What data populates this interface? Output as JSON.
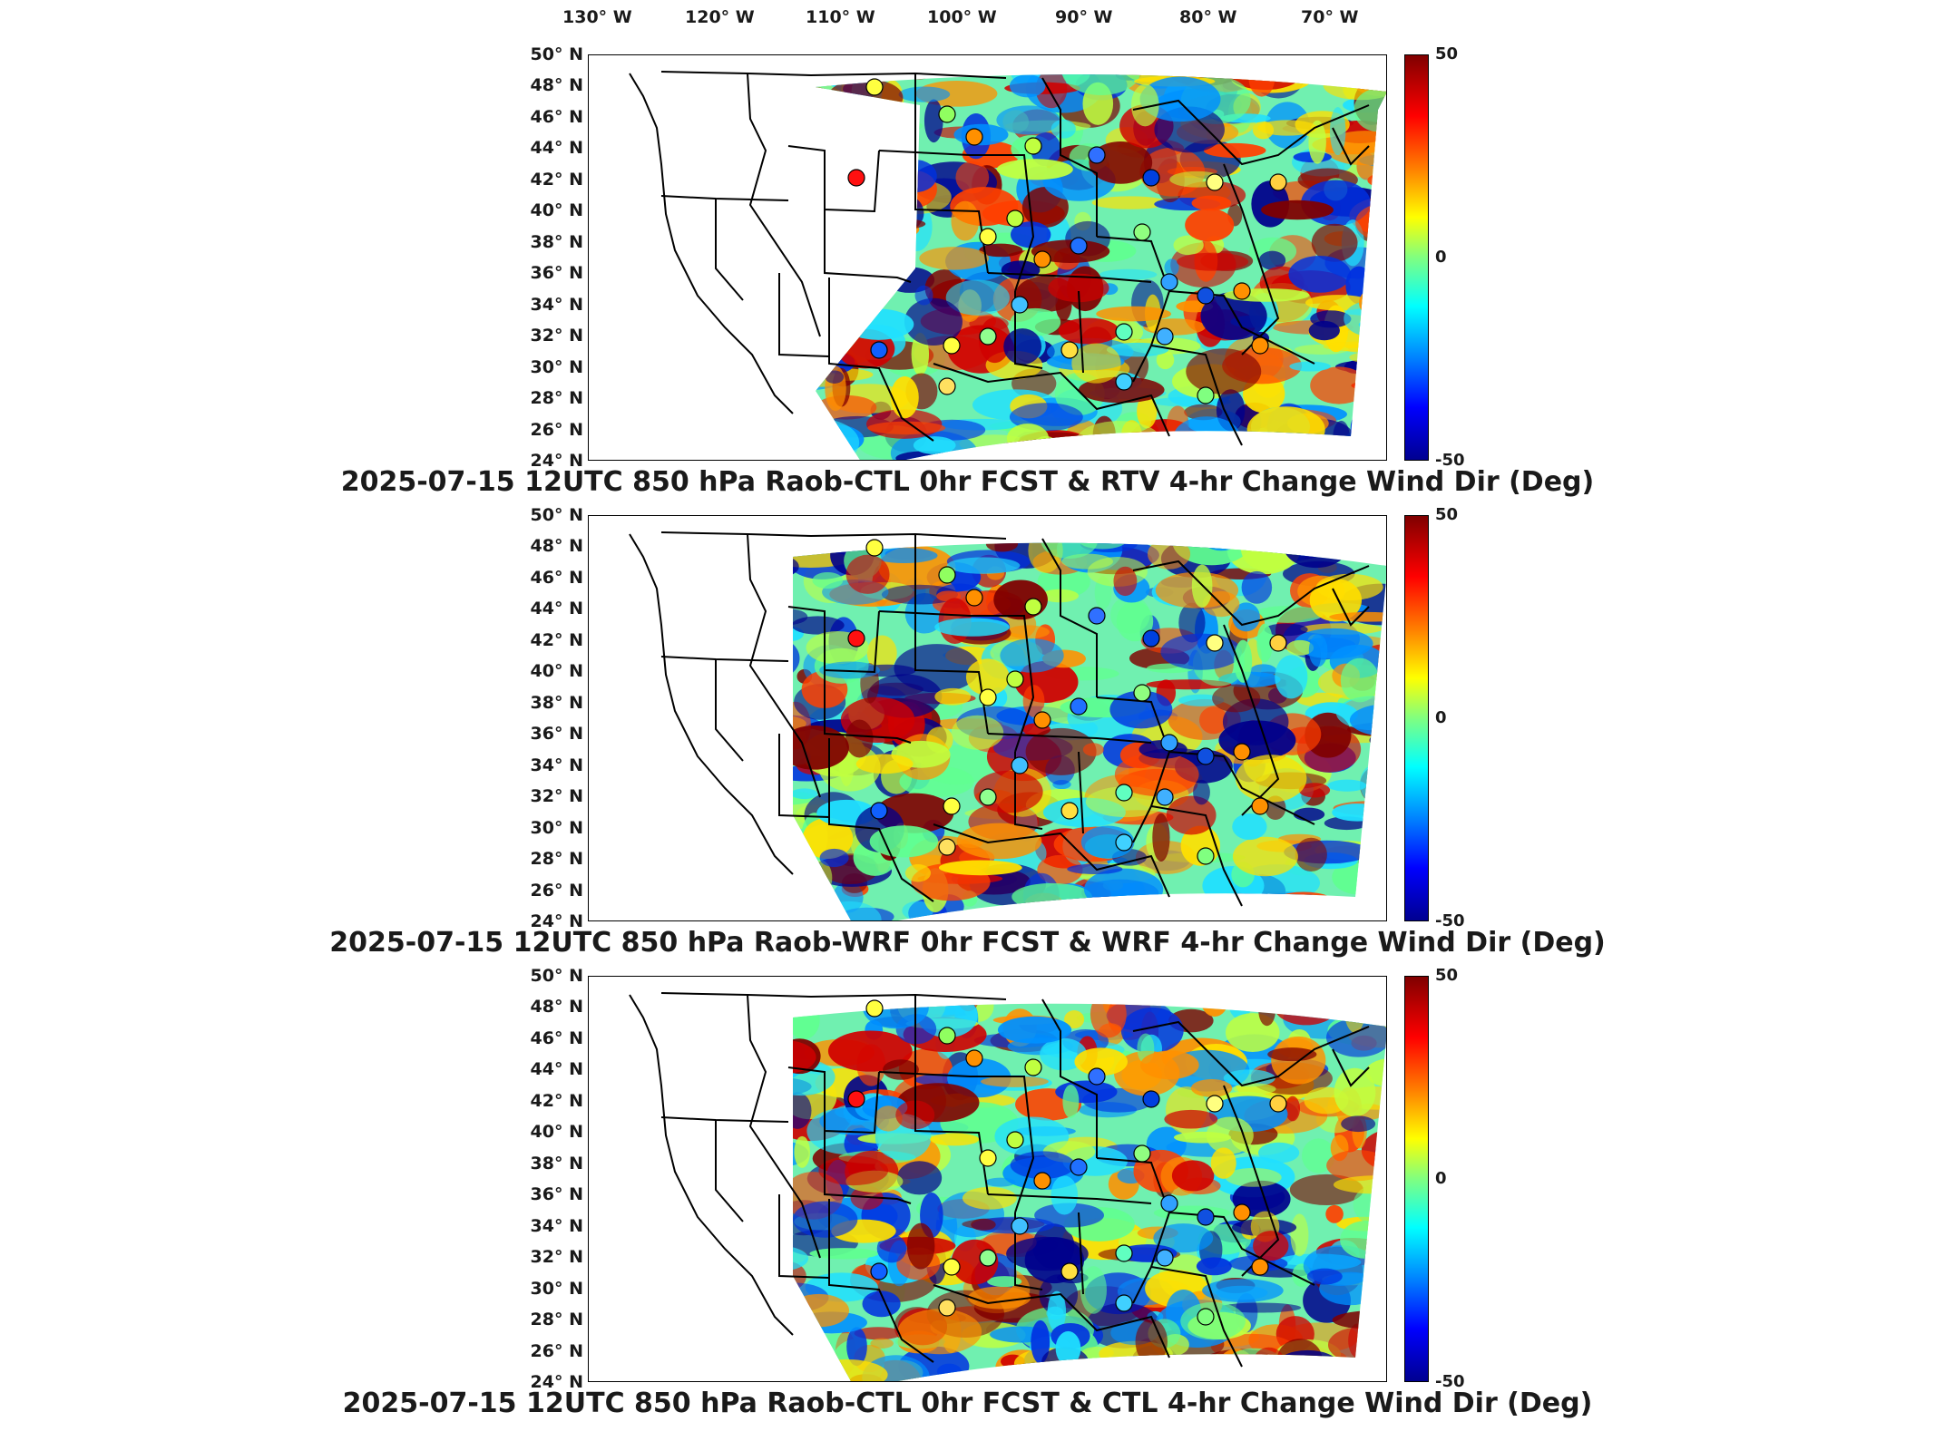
{
  "longitude_labels": [
    "130° W",
    "120° W",
    "110° W",
    "100° W",
    "90° W",
    "80° W",
    "70° W"
  ],
  "latitude_labels": [
    "50° N",
    "48° N",
    "46° N",
    "44° N",
    "42° N",
    "40° N",
    "38° N",
    "36° N",
    "34° N",
    "32° N",
    "30° N",
    "28° N",
    "26° N",
    "24° N"
  ],
  "colorbar": {
    "max": "50",
    "mid": "0",
    "min": "-50",
    "colormap": "jet"
  },
  "panels": [
    {
      "title": "2025-07-15 12UTC 850 hPa Raob-CTL 0hr FCST & RTV 4-hr Change Wind Dir (Deg)"
    },
    {
      "title": "2025-07-15 12UTC 850 hPa Raob-WRF 0hr FCST & WRF 4-hr Change Wind Dir (Deg)"
    },
    {
      "title": "2025-07-15 12UTC 850 hPa Raob-CTL 0hr FCST & CTL 4-hr Change Wind Dir (Deg)"
    }
  ],
  "colors": {
    "high": "#800000",
    "zero": "#80ff80",
    "low": "#000090",
    "land_outline": "#000000"
  }
}
